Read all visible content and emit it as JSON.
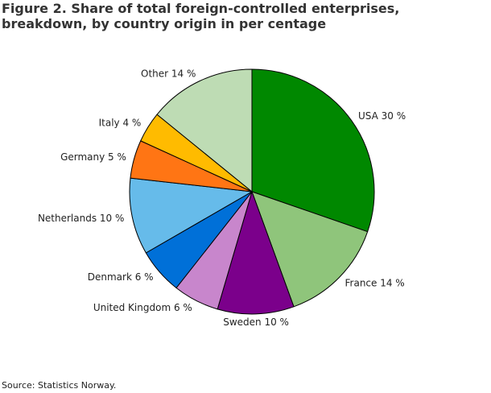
{
  "title": "Figure 2. Share of total foreign-controlled enterprises, breakdown, by country origin in per centage",
  "source": "Source: Statistics Norway.",
  "chart_data": {
    "type": "pie",
    "title": "Figure 2. Share of total foreign-controlled enterprises, breakdown, by country origin in per centage",
    "unit": "%",
    "slices": [
      {
        "label": "USA",
        "value": 30,
        "display": "USA 30 %",
        "color": "#008800"
      },
      {
        "label": "France",
        "value": 14,
        "display": "France 14 %",
        "color": "#8fc57b"
      },
      {
        "label": "Sweden",
        "value": 10,
        "display": "Sweden 10 %",
        "color": "#7b008b"
      },
      {
        "label": "United Kingdom",
        "value": 6,
        "display": "United Kingdom 6 %",
        "color": "#c886cc"
      },
      {
        "label": "Denmark",
        "value": 6,
        "display": "Denmark 6 %",
        "color": "#0070d8"
      },
      {
        "label": "Netherlands",
        "value": 10,
        "display": "Netherlands 10 %",
        "color": "#66bbea"
      },
      {
        "label": "Germany",
        "value": 5,
        "display": "Germany 5 %",
        "color": "#ff7514"
      },
      {
        "label": "Italy",
        "value": 4,
        "display": "Italy 4 %",
        "color": "#ffbb00"
      },
      {
        "label": "Other",
        "value": 14,
        "display": "Other 14 %",
        "color": "#bedcb4"
      }
    ]
  }
}
